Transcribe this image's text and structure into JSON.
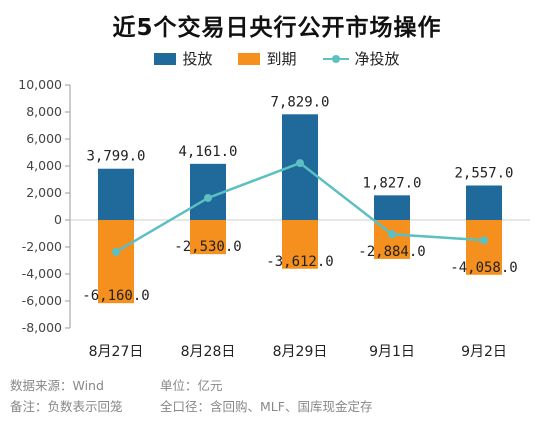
{
  "title": "近5个交易日央行公开市场操作",
  "colors": {
    "invest": "#1f6a9a",
    "expire": "#f5901e",
    "net": "#5cbfc1",
    "axis": "#999999",
    "text": "#222222"
  },
  "legend": [
    {
      "key": "invest",
      "label": "投放",
      "kind": "bar"
    },
    {
      "key": "expire",
      "label": "到期",
      "kind": "bar"
    },
    {
      "key": "net",
      "label": "净投放",
      "kind": "line"
    }
  ],
  "chart_data": {
    "type": "bar",
    "categories": [
      "8月27日",
      "8月28日",
      "8月29日",
      "9月1日",
      "9月2日"
    ],
    "series": [
      {
        "name": "投放",
        "type": "bar",
        "values": [
          3799.0,
          4161.0,
          7829.0,
          1827.0,
          2557.0
        ],
        "labels": [
          "3,799.0",
          "4,161.0",
          "7,829.0",
          "1,827.0",
          "2,557.0"
        ]
      },
      {
        "name": "到期",
        "type": "bar",
        "values": [
          -6160.0,
          -2530.0,
          -3612.0,
          -2884.0,
          -4058.0
        ],
        "labels": [
          "-6,160.0",
          "-2,530.0",
          "-3,612.0",
          "-2,884.0",
          "-4,058.0"
        ]
      },
      {
        "name": "净投放",
        "type": "line",
        "values": [
          -2361.0,
          1631.0,
          4217.0,
          -1057.0,
          -1501.0
        ]
      }
    ],
    "yticks": [
      "10,000",
      "8,000",
      "6,000",
      "4,000",
      "2,000",
      "0",
      "-2,000",
      "-4,000",
      "-6,000",
      "-8,000"
    ],
    "ylim": [
      -8000,
      10000
    ],
    "grid": false,
    "legend_position": "top"
  },
  "footer": {
    "source": "数据来源：Wind",
    "unit": "单位：亿元",
    "note": "备注：负数表示回笼",
    "scope": "全口径：含回购、MLF、国库现金定存"
  }
}
